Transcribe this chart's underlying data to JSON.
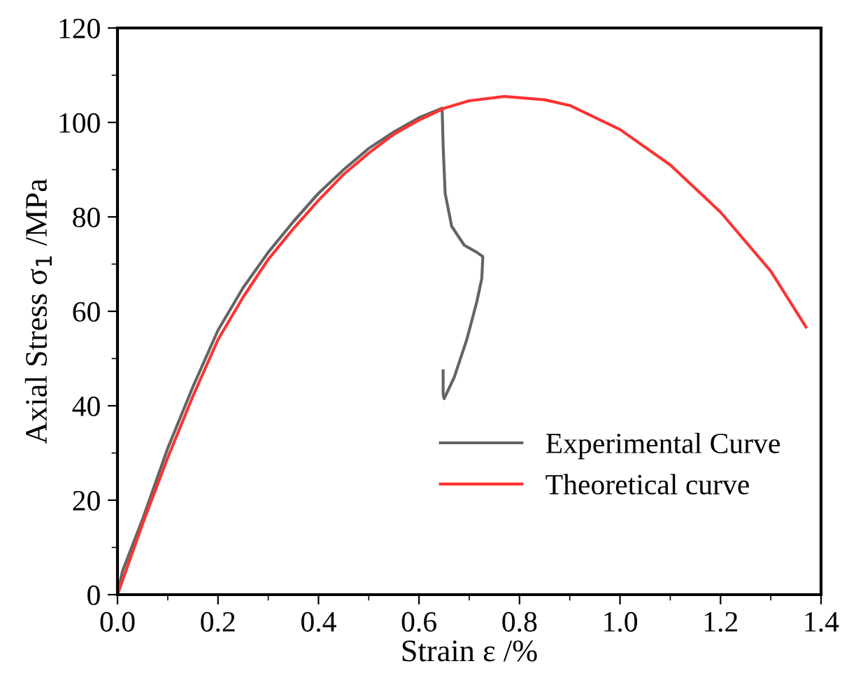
{
  "chart_data": {
    "type": "line",
    "xlabel": "Strain ε /%",
    "ylabel": "Axial Stress σ$_{1}$ /MPa",
    "xlim": [
      0,
      1.4
    ],
    "ylim": [
      0,
      120
    ],
    "xticks": [
      {
        "value": 0,
        "label": "0.0"
      },
      {
        "value": 0.1,
        "label": null
      },
      {
        "value": 0.2,
        "label": "0.2"
      },
      {
        "value": 0.3,
        "label": null
      },
      {
        "value": 0.4,
        "label": "0.4"
      },
      {
        "value": 0.5,
        "label": null
      },
      {
        "value": 0.6,
        "label": "0.6"
      },
      {
        "value": 0.7,
        "label": null
      },
      {
        "value": 0.8,
        "label": "0.8"
      },
      {
        "value": 0.9,
        "label": null
      },
      {
        "value": 1.0,
        "label": "1.0"
      },
      {
        "value": 1.1,
        "label": null
      },
      {
        "value": 1.2,
        "label": "1.2"
      },
      {
        "value": 1.3,
        "label": null
      },
      {
        "value": 1.4,
        "label": "1.4"
      }
    ],
    "yticks": [
      0,
      {
        "value": 10,
        "label": null
      },
      20,
      {
        "value": 30,
        "label": null
      },
      40,
      {
        "value": 50,
        "label": null
      },
      60,
      {
        "value": 70,
        "label": null
      },
      80,
      {
        "value": 90,
        "label": null
      },
      100,
      {
        "value": 110,
        "label": null
      },
      120
    ],
    "grid": false,
    "legend": "bottom right",
    "marker": "none",
    "line_style": "solid",
    "series": [
      {
        "name": "Experimental Curve",
        "color": "#646464",
        "x": [
          0,
          0.01,
          0.05,
          0.1,
          0.15,
          0.2,
          0.25,
          0.3,
          0.35,
          0.4,
          0.45,
          0.5,
          0.55,
          0.6,
          0.646,
          0.648,
          0.652,
          0.665,
          0.69,
          0.715,
          0.727,
          0.725,
          0.715,
          0.695,
          0.67,
          0.65,
          0.648,
          0.648
        ],
        "values": [
          0,
          5,
          16,
          31,
          44,
          56,
          65,
          72.5,
          79,
          85,
          90,
          94.5,
          98,
          101,
          103,
          95,
          85,
          78,
          74,
          72.5,
          71.6,
          67,
          62,
          54,
          46,
          41.5,
          42.5,
          47.4
        ]
      },
      {
        "name": "Theoretical curve",
        "color": "#ff3333",
        "x": [
          0,
          0.05,
          0.1,
          0.15,
          0.2,
          0.25,
          0.3,
          0.35,
          0.4,
          0.45,
          0.5,
          0.55,
          0.6,
          0.65,
          0.7,
          0.77,
          0.85,
          0.9,
          1.0,
          1.1,
          1.2,
          1.3,
          1.37
        ],
        "values": [
          0,
          15,
          29,
          42,
          54,
          63,
          71,
          77.5,
          83.5,
          89,
          93.5,
          97.5,
          100.5,
          103,
          104.6,
          105.5,
          104.8,
          103.6,
          98.5,
          91,
          81,
          68.5,
          56.7
        ]
      }
    ]
  }
}
